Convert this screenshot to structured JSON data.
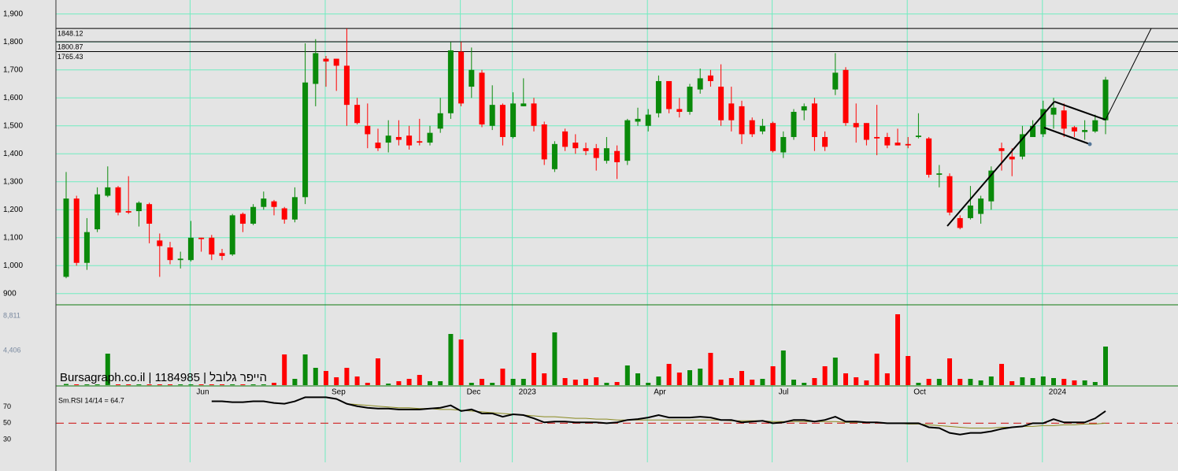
{
  "chart_data": {
    "type": "candlestick",
    "watermark": "Bursagraph.co.il | 1184985 | הייפר גלובל",
    "categories": [
      null,
      null,
      null,
      null,
      null,
      null,
      null,
      null,
      null,
      null,
      null,
      null,
      "Jun",
      null,
      null,
      null,
      null,
      null,
      null,
      null,
      null,
      null,
      null,
      null,
      null,
      "Sep",
      null,
      null,
      null,
      null,
      null,
      null,
      null,
      null,
      null,
      null,
      null,
      null,
      "Dec",
      null,
      null,
      null,
      null,
      "2023",
      null,
      null,
      null,
      null,
      null,
      null,
      null,
      null,
      null,
      null,
      null,
      null,
      "Apr",
      null,
      null,
      null,
      null,
      null,
      null,
      null,
      null,
      null,
      null,
      null,
      "Jul",
      null,
      null,
      null,
      null,
      null,
      null,
      null,
      null,
      null,
      null,
      null,
      null,
      "Oct",
      null,
      null,
      null,
      null,
      null,
      null,
      null,
      null,
      null,
      null,
      null,
      null,
      "2024",
      null,
      null,
      null,
      null,
      null,
      null
    ],
    "open": [
      960,
      1240,
      1010,
      1130,
      1250,
      1280,
      1195,
      1195,
      1220,
      1090,
      1065,
      1020,
      1020,
      1100,
      1100,
      1045,
      1040,
      1185,
      1150,
      1210,
      1230,
      1205,
      1165,
      1245,
      1650,
      1740,
      1740,
      1715,
      1575,
      1500,
      1440,
      1440,
      1460,
      1465,
      1445,
      1440,
      1490,
      1545,
      1765,
      1640,
      1690,
      1500,
      1575,
      1460,
      1570,
      1580,
      1505,
      1345,
      1480,
      1440,
      1420,
      1420,
      1375,
      1410,
      1375,
      1515,
      1500,
      1545,
      1660,
      1560,
      1550,
      1630,
      1680,
      1640,
      1580,
      1570,
      1520,
      1480,
      1510,
      1405,
      1460,
      1555,
      1580,
      1460,
      1630,
      1700,
      1510,
      1510,
      1460,
      1460,
      1440,
      1435,
      1460,
      1455,
      1325,
      1320,
      1170,
      1170,
      1185,
      1230,
      1420,
      1390,
      1390,
      1460,
      1470,
      1540,
      1555,
      1495,
      1478,
      1480,
      1520
    ],
    "high": [
      1335,
      1250,
      1170,
      1280,
      1355,
      1285,
      1320,
      1230,
      1225,
      1115,
      1085,
      1050,
      1160,
      1100,
      1110,
      1060,
      1185,
      1190,
      1220,
      1265,
      1235,
      1210,
      1280,
      1795,
      1810,
      1750,
      1740,
      1848,
      1600,
      1580,
      1490,
      1520,
      1520,
      1500,
      1525,
      1500,
      1600,
      1800,
      1800,
      1780,
      1700,
      1645,
      1580,
      1620,
      1670,
      1600,
      1515,
      1445,
      1490,
      1470,
      1440,
      1435,
      1460,
      1430,
      1525,
      1565,
      1560,
      1680,
      1660,
      1600,
      1650,
      1705,
      1700,
      1720,
      1640,
      1590,
      1530,
      1525,
      1515,
      1480,
      1560,
      1580,
      1600,
      1480,
      1760,
      1710,
      1580,
      1510,
      1575,
      1475,
      1490,
      1460,
      1545,
      1460,
      1360,
      1330,
      1180,
      1285,
      1250,
      1355,
      1440,
      1420,
      1500,
      1520,
      1590,
      1600,
      1580,
      1500,
      1520,
      1540,
      1675
    ],
    "low": [
      955,
      1000,
      985,
      1120,
      1245,
      1180,
      1185,
      1140,
      1080,
      960,
      1005,
      990,
      1015,
      1050,
      1020,
      1020,
      1035,
      1120,
      1145,
      1200,
      1180,
      1150,
      1155,
      1220,
      1570,
      1640,
      1625,
      1500,
      1505,
      1420,
      1410,
      1405,
      1430,
      1415,
      1430,
      1430,
      1475,
      1525,
      1570,
      1600,
      1495,
      1485,
      1430,
      1455,
      1570,
      1480,
      1360,
      1335,
      1410,
      1400,
      1395,
      1340,
      1365,
      1310,
      1360,
      1500,
      1480,
      1530,
      1545,
      1530,
      1540,
      1615,
      1640,
      1500,
      1480,
      1435,
      1460,
      1470,
      1405,
      1385,
      1450,
      1520,
      1410,
      1410,
      1610,
      1500,
      1440,
      1430,
      1395,
      1420,
      1430,
      1420,
      1455,
      1315,
      1280,
      1180,
      1130,
      1165,
      1150,
      1200,
      1340,
      1320,
      1380,
      1460,
      1460,
      1490,
      1460,
      1460,
      1450,
      1475,
      1470
    ],
    "close": [
      1240,
      1010,
      1120,
      1255,
      1280,
      1190,
      1190,
      1225,
      1150,
      1070,
      1020,
      1025,
      1100,
      1095,
      1040,
      1035,
      1180,
      1150,
      1210,
      1240,
      1210,
      1165,
      1245,
      1655,
      1760,
      1730,
      1715,
      1575,
      1510,
      1470,
      1420,
      1465,
      1450,
      1430,
      1440,
      1475,
      1545,
      1770,
      1580,
      1700,
      1505,
      1575,
      1460,
      1580,
      1580,
      1500,
      1380,
      1435,
      1425,
      1420,
      1410,
      1385,
      1420,
      1370,
      1520,
      1525,
      1540,
      1660,
      1560,
      1550,
      1640,
      1670,
      1660,
      1520,
      1520,
      1470,
      1470,
      1500,
      1410,
      1460,
      1550,
      1570,
      1460,
      1425,
      1690,
      1510,
      1495,
      1450,
      1455,
      1430,
      1430,
      1430,
      1465,
      1325,
      1330,
      1190,
      1135,
      1215,
      1240,
      1340,
      1410,
      1380,
      1470,
      1500,
      1560,
      1565,
      1490,
      1480,
      1485,
      1520,
      1665
    ],
    "up_color": "#0a8a0a",
    "down_color": "#ff0000",
    "ylim": [
      860,
      1950
    ],
    "yticks": [
      {
        "value": 900,
        "label": "900"
      },
      {
        "value": 1000,
        "label": "1,000"
      },
      {
        "value": 1100,
        "label": "1,100"
      },
      {
        "value": 1200,
        "label": "1,200"
      },
      {
        "value": 1300,
        "label": "1,300"
      },
      {
        "value": 1400,
        "label": "1,400"
      },
      {
        "value": 1500,
        "label": "1,500"
      },
      {
        "value": 1600,
        "label": "1,600"
      },
      {
        "value": 1700,
        "label": "1,700"
      },
      {
        "value": 1800,
        "label": "1,800"
      },
      {
        "value": 1900,
        "label": "1,900"
      }
    ],
    "hlines": [
      {
        "value": 1848.12,
        "label": "1848.12"
      },
      {
        "value": 1800.87,
        "label": "1800.87"
      },
      {
        "value": 1765.43,
        "label": "1765.43"
      }
    ],
    "volume": {
      "values": [
        150,
        100,
        100,
        100,
        4000,
        100,
        100,
        100,
        100,
        100,
        100,
        100,
        100,
        100,
        100,
        100,
        100,
        100,
        100,
        100,
        300,
        3900,
        800,
        3900,
        2200,
        1800,
        1000,
        2200,
        1100,
        300,
        3400,
        200,
        500,
        800,
        1300,
        500,
        500,
        6500,
        5800,
        300,
        800,
        300,
        2100,
        800,
        800,
        4100,
        1500,
        6700,
        900,
        700,
        800,
        1000,
        300,
        400,
        2500,
        1500,
        300,
        1100,
        2700,
        1600,
        1900,
        2100,
        4100,
        700,
        900,
        1800,
        700,
        800,
        2400,
        4400,
        700,
        300,
        900,
        2400,
        3500,
        1500,
        1000,
        600,
        4000,
        1500,
        9000,
        3700,
        300,
        800,
        800,
        3400,
        800,
        800,
        600,
        1100,
        2700,
        500,
        1000,
        900,
        1100,
        900,
        800,
        600,
        600,
        400,
        4900
      ],
      "ylim": [
        0,
        10200
      ],
      "yticks": [
        {
          "value": 8811,
          "label": "8,811"
        },
        {
          "value": 4406,
          "label": "4,406"
        }
      ]
    },
    "rsi": {
      "label": "Sm.RSI 14/14 = 64.7",
      "color": "#000000",
      "signal_color": "#8a8a20",
      "ref_color": "#d02020",
      "values": [
        null,
        null,
        null,
        null,
        null,
        null,
        null,
        null,
        null,
        null,
        null,
        null,
        null,
        null,
        77,
        77,
        76,
        76,
        77,
        77,
        75,
        74,
        77,
        82,
        82,
        82,
        80,
        74,
        71,
        69,
        68,
        68,
        67,
        67,
        67,
        68,
        69,
        72,
        65,
        67,
        62,
        62,
        58,
        61,
        60,
        56,
        51,
        52,
        52,
        51,
        51,
        51,
        50,
        51,
        54,
        55,
        57,
        60,
        57,
        57,
        57,
        58,
        57,
        54,
        54,
        51,
        52,
        53,
        50,
        51,
        54,
        54,
        52,
        54,
        58,
        52,
        52,
        51,
        51,
        50,
        50,
        50,
        50,
        45,
        44,
        38,
        36,
        38,
        38,
        40,
        43,
        45,
        46,
        50,
        50,
        55,
        51,
        51,
        51,
        56,
        65
      ],
      "signal": [
        null,
        null,
        null,
        null,
        null,
        null,
        null,
        null,
        null,
        null,
        null,
        null,
        null,
        null,
        null,
        null,
        null,
        null,
        null,
        null,
        null,
        null,
        null,
        null,
        null,
        null,
        null,
        74,
        73,
        72,
        71,
        70,
        69,
        69,
        68,
        68,
        67,
        67,
        66,
        65,
        64,
        63,
        62,
        61,
        60,
        59,
        58,
        58,
        57,
        56,
        56,
        55,
        55,
        54,
        54,
        54,
        54,
        54,
        54,
        54,
        54,
        54,
        54,
        54,
        53,
        53,
        53,
        53,
        52,
        52,
        52,
        52,
        52,
        52,
        52,
        51,
        51,
        51,
        51,
        50,
        50,
        49,
        49,
        48,
        47,
        46,
        45,
        44,
        44,
        44,
        45,
        45,
        46,
        46,
        47,
        47,
        48,
        48,
        49,
        49,
        50
      ],
      "ref": 50,
      "ylim": [
        -9,
        96
      ],
      "yticks": [
        70,
        50,
        30
      ]
    }
  }
}
